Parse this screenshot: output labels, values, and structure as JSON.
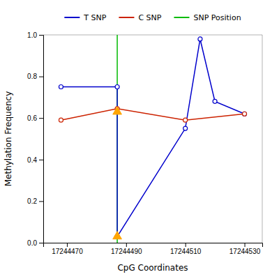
{
  "chart_data": {
    "type": "line",
    "xlabel": "CpG Coordinates",
    "ylabel": "Methylation Frequency",
    "series": [
      {
        "name": "T SNP",
        "color": "#0000cc",
        "marker": "circle",
        "x": [
          17244468,
          17244487,
          17244487,
          17244510,
          17244515,
          17244520,
          17244530
        ],
        "values": [
          0.75,
          0.75,
          0.03,
          0.55,
          0.98,
          0.68,
          0.62
        ]
      },
      {
        "name": "C SNP",
        "color": "#cc2200",
        "marker": "circle",
        "x": [
          17244468,
          17244487,
          17244510,
          17244530
        ],
        "values": [
          0.59,
          0.645,
          0.59,
          0.62
        ]
      },
      {
        "name": "SNP Position",
        "type": "vline",
        "color": "#00bb00",
        "x": [
          17244487
        ]
      },
      {
        "type": "scatter",
        "marker": "triangle",
        "color": "#FFA500",
        "x": [
          17244487,
          17244487
        ],
        "values": [
          0.63,
          0.03
        ]
      }
    ],
    "xlim": [
      17244462,
      17244536
    ],
    "ylim": [
      0.0,
      1.0
    ],
    "xticks": [
      17244470,
      17244490,
      17244510,
      17244530
    ],
    "yticks": [
      {
        "value": 0.0,
        "label": "0.0"
      },
      0.2,
      0.4,
      0.6,
      0.8,
      {
        "value": 1.0,
        "label": "1.0"
      }
    ],
    "legend": "top",
    "grid": false
  }
}
